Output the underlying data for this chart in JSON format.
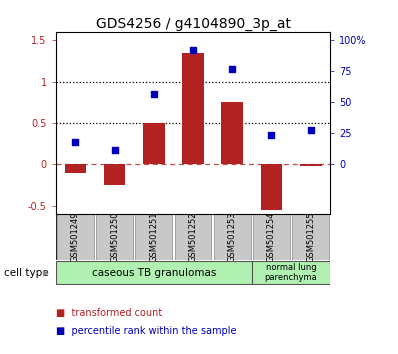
{
  "title": "GDS4256 / g4104890_3p_at",
  "samples": [
    "GSM501249",
    "GSM501250",
    "GSM501251",
    "GSM501252",
    "GSM501253",
    "GSM501254",
    "GSM501255"
  ],
  "red_bars": [
    -0.1,
    -0.25,
    0.5,
    1.35,
    0.75,
    -0.55,
    -0.02
  ],
  "blue_squares": [
    0.27,
    0.18,
    0.85,
    1.38,
    1.15,
    0.35,
    0.42
  ],
  "ylim": [
    -0.6,
    1.6
  ],
  "yticks_left": [
    -0.5,
    0.0,
    0.5,
    1.0,
    1.5
  ],
  "ytick_left_labels": [
    "-0.5",
    "0",
    "0.5",
    "1",
    "1.5"
  ],
  "yticks_right_vals": [
    0.0,
    0.375,
    0.75,
    1.125,
    1.5
  ],
  "yticks_right_labels": [
    "0",
    "25",
    "50",
    "75",
    "100%"
  ],
  "hlines_dotted": [
    0.5,
    1.0
  ],
  "dashed_hline": 0.0,
  "bar_color": "#b22222",
  "square_color": "#0000bb",
  "group1_label": "caseous TB granulomas",
  "group2_label": "normal lung\nparenchyma",
  "cell_type_label": "cell type",
  "legend_red": "transformed count",
  "legend_blue": "percentile rank within the sample",
  "bg_plot": "#ffffff",
  "bg_ticks": "#c8c8c8",
  "bg_group1": "#b0f0b0",
  "bg_group2": "#b0f0b0",
  "title_fontsize": 10,
  "tick_fontsize": 7,
  "label_fontsize": 7.5
}
